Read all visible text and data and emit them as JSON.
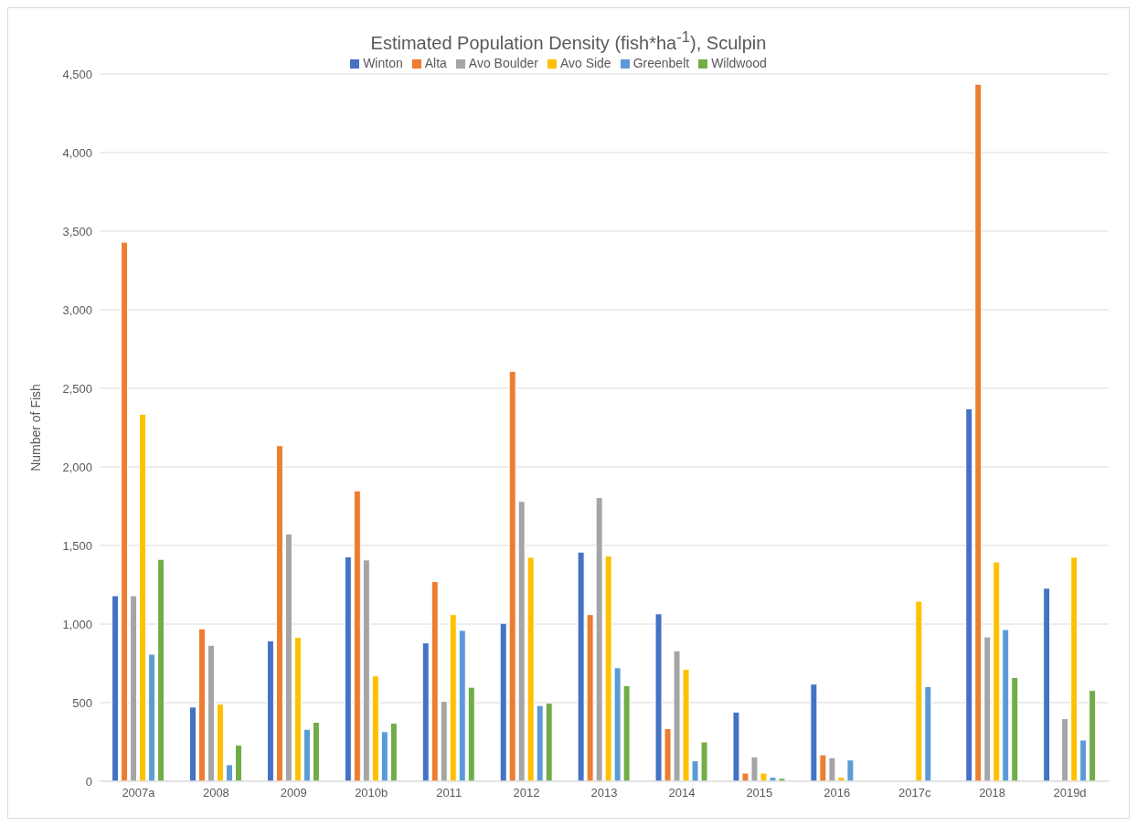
{
  "chart_data": {
    "type": "bar",
    "title": "Estimated Population Density (fish*ha$^{-1}$), Sculpin",
    "ylabel": "Number of Fish",
    "categories": [
      "2007a",
      "2008",
      "2009",
      "2010b",
      "2011",
      "2012",
      "2013",
      "2014",
      "2015",
      "2016",
      "2017c",
      "2018",
      "2019d"
    ],
    "series": [
      {
        "name": "Winton",
        "color": "#4472c4",
        "values": [
          1180,
          472,
          893,
          1428,
          880,
          1005,
          1458,
          1065,
          440,
          618,
          null,
          2370,
          1228
        ]
      },
      {
        "name": "Alta",
        "color": "#ed7d31",
        "values": [
          3430,
          970,
          2135,
          1848,
          1270,
          2608,
          1060,
          335,
          52,
          168,
          null,
          4435,
          null
        ]
      },
      {
        "name": "Avo Boulder",
        "color": "#a5a5a5",
        "values": [
          1180,
          865,
          1573,
          1408,
          508,
          1780,
          1805,
          830,
          155,
          150,
          null,
          918,
          398
        ]
      },
      {
        "name": "Avo Side",
        "color": "#ffc000",
        "values": [
          2335,
          490,
          915,
          670,
          1060,
          1425,
          1433,
          712,
          52,
          25,
          1145,
          1395,
          1425
        ]
      },
      {
        "name": "Greenbelt",
        "color": "#5b9bd5",
        "values": [
          808,
          105,
          330,
          315,
          960,
          482,
          722,
          130,
          25,
          135,
          602,
          965,
          262
        ]
      },
      {
        "name": "Wildwood",
        "color": "#70ad47",
        "values": [
          1412,
          230,
          375,
          370,
          598,
          498,
          608,
          250,
          18,
          null,
          null,
          660,
          578
        ]
      }
    ],
    "ylim": [
      0,
      4500
    ],
    "yticks": [
      0,
      500,
      {
        "value": 1000,
        "label": "1,000"
      },
      {
        "value": 1500,
        "label": "1,500"
      },
      {
        "value": 2000,
        "label": "2,000"
      },
      {
        "value": 2500,
        "label": "2,500"
      },
      {
        "value": 3000,
        "label": "3,000"
      },
      {
        "value": 3500,
        "label": "3,500"
      },
      {
        "value": 4000,
        "label": "4,000"
      },
      {
        "value": 4500,
        "label": "4,500"
      }
    ],
    "grid": "y",
    "legend": "top"
  }
}
